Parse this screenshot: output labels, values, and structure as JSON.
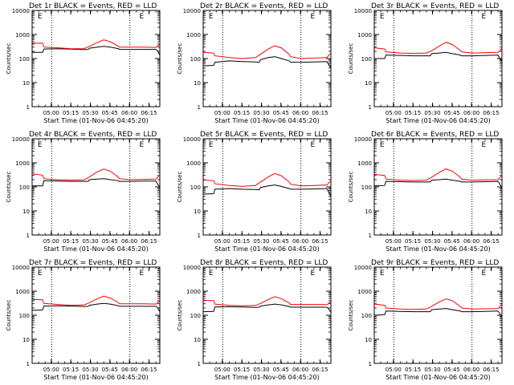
{
  "figure": {
    "background": "#ffffff"
  },
  "chart_data": [
    {
      "type": "line",
      "panel": "det-1r",
      "title": "Det 1r BLACK = Events, RED = LLD",
      "xlabel": "Start Time (01-Nov-06 04:45:20)",
      "ylabel": "Counts/sec",
      "xticks": [
        "05:00",
        "05:15",
        "05:30",
        "05:45",
        "06:00",
        "06:15"
      ],
      "yticks": [
        "1",
        "10",
        "100",
        "1000",
        "10000"
      ],
      "ylim": [
        1,
        10000
      ],
      "yscale": "log",
      "xlim_minutes": [
        0,
        98
      ],
      "markers": [
        "E",
        "E"
      ],
      "vlines_minutes": [
        15,
        75
      ],
      "series": [
        {
          "color": "#000000",
          "x": [
            0,
            8,
            9,
            20,
            30,
            40,
            43,
            44,
            50,
            55,
            60,
            66,
            67,
            75,
            85,
            95,
            96,
            98
          ],
          "y": [
            180,
            180,
            250,
            255,
            245,
            235,
            240,
            270,
            300,
            320,
            300,
            260,
            240,
            240,
            240,
            240,
            215,
            140
          ]
        },
        {
          "color": "#ff0000",
          "x": [
            0,
            8,
            9,
            20,
            30,
            40,
            44,
            50,
            55,
            60,
            66,
            67,
            75,
            85,
            95,
            96,
            98
          ],
          "y": [
            430,
            440,
            300,
            280,
            255,
            260,
            320,
            460,
            600,
            500,
            330,
            300,
            300,
            300,
            290,
            320,
            400
          ]
        }
      ]
    },
    {
      "type": "line",
      "panel": "det-2r",
      "title": "Det 2r BLACK = Events, RED = LLD",
      "xlabel": "Start Time (01-Nov-06 04:45:20)",
      "ylabel": "Counts/sec",
      "xticks": [
        "05:00",
        "05:15",
        "05:30",
        "05:45",
        "06:00",
        "06:15"
      ],
      "yticks": [
        "1",
        "10",
        "100",
        "1000",
        "10000"
      ],
      "ylim": [
        1,
        10000
      ],
      "yscale": "log",
      "xlim_minutes": [
        0,
        98
      ],
      "markers": [
        "E",
        "E"
      ],
      "vlines_minutes": [
        15,
        75
      ],
      "series": [
        {
          "color": "#000000",
          "x": [
            0,
            8,
            9,
            20,
            30,
            40,
            43,
            44,
            50,
            55,
            60,
            66,
            67,
            75,
            85,
            95,
            96,
            98
          ],
          "y": [
            50,
            52,
            70,
            80,
            75,
            72,
            70,
            90,
            110,
            120,
            100,
            80,
            70,
            70,
            72,
            75,
            60,
            40
          ]
        },
        {
          "color": "#ff0000",
          "x": [
            0,
            8,
            9,
            20,
            30,
            40,
            44,
            50,
            55,
            60,
            66,
            67,
            75,
            85,
            95,
            96,
            98
          ],
          "y": [
            180,
            170,
            130,
            110,
            100,
            110,
            150,
            250,
            340,
            280,
            150,
            120,
            100,
            105,
            110,
            130,
            170
          ]
        }
      ]
    },
    {
      "type": "line",
      "panel": "det-3r",
      "title": "Det 3r BLACK = Events, RED = LLD",
      "xlabel": "Start Time (01-Nov-06 04:45:20)",
      "ylabel": "Counts/sec",
      "xticks": [
        "05:00",
        "05:15",
        "05:30",
        "05:45",
        "06:00",
        "06:15"
      ],
      "yticks": [
        "1",
        "10",
        "100",
        "1000",
        "10000"
      ],
      "ylim": [
        1,
        10000
      ],
      "yscale": "log",
      "xlim_minutes": [
        0,
        98
      ],
      "markers": [
        "E",
        "E"
      ],
      "vlines_minutes": [
        15,
        75
      ],
      "series": [
        {
          "color": "#000000",
          "x": [
            0,
            8,
            9,
            20,
            30,
            40,
            43,
            44,
            50,
            55,
            60,
            66,
            67,
            75,
            85,
            95,
            96,
            98
          ],
          "y": [
            100,
            100,
            140,
            135,
            130,
            130,
            130,
            160,
            170,
            180,
            160,
            140,
            130,
            130,
            135,
            140,
            110,
            80
          ]
        },
        {
          "color": "#ff0000",
          "x": [
            0,
            8,
            9,
            20,
            30,
            40,
            44,
            50,
            55,
            60,
            66,
            67,
            75,
            85,
            95,
            96,
            98
          ],
          "y": [
            280,
            250,
            190,
            170,
            165,
            170,
            210,
            330,
            480,
            380,
            220,
            190,
            170,
            175,
            180,
            200,
            280
          ]
        }
      ]
    },
    {
      "type": "line",
      "panel": "det-4r",
      "title": "Det 4r BLACK = Events, RED = LLD",
      "xlabel": "Start Time (01-Nov-06 04:45:20)",
      "ylabel": "Counts/sec",
      "xticks": [
        "05:00",
        "05:15",
        "05:30",
        "05:45",
        "06:00",
        "06:15"
      ],
      "yticks": [
        "1",
        "10",
        "100",
        "1000",
        "10000"
      ],
      "ylim": [
        1,
        10000
      ],
      "yscale": "log",
      "xlim_minutes": [
        0,
        98
      ],
      "markers": [
        "E",
        "E"
      ],
      "vlines_minutes": [
        15,
        75
      ],
      "series": [
        {
          "color": "#000000",
          "x": [
            0,
            8,
            9,
            20,
            30,
            40,
            43,
            44,
            50,
            55,
            60,
            66,
            67,
            75,
            85,
            95,
            96,
            98
          ],
          "y": [
            110,
            110,
            180,
            175,
            170,
            170,
            170,
            200,
            210,
            220,
            200,
            180,
            170,
            170,
            175,
            175,
            140,
            95
          ]
        },
        {
          "color": "#ff0000",
          "x": [
            0,
            8,
            9,
            20,
            30,
            40,
            44,
            50,
            55,
            60,
            66,
            67,
            75,
            85,
            95,
            96,
            98
          ],
          "y": [
            350,
            310,
            220,
            195,
            190,
            195,
            260,
            420,
            550,
            450,
            260,
            220,
            200,
            205,
            210,
            240,
            320
          ]
        }
      ]
    },
    {
      "type": "line",
      "panel": "det-5r",
      "title": "Det 5r BLACK = Events, RED = LLD",
      "xlabel": "Start Time (01-Nov-06 04:45:20)",
      "ylabel": "Counts/sec",
      "xticks": [
        "05:00",
        "05:15",
        "05:30",
        "05:45",
        "06:00",
        "06:15"
      ],
      "yticks": [
        "1",
        "10",
        "100",
        "1000",
        "10000"
      ],
      "ylim": [
        1,
        10000
      ],
      "yscale": "log",
      "xlim_minutes": [
        0,
        98
      ],
      "markers": [
        "E",
        "E"
      ],
      "vlines_minutes": [
        15,
        75
      ],
      "series": [
        {
          "color": "#000000",
          "x": [
            0,
            8,
            9,
            20,
            30,
            40,
            43,
            44,
            50,
            55,
            60,
            66,
            67,
            75,
            85,
            95,
            96,
            98
          ],
          "y": [
            50,
            52,
            80,
            85,
            80,
            78,
            75,
            95,
            110,
            120,
            105,
            85,
            80,
            80,
            82,
            85,
            65,
            40
          ]
        },
        {
          "color": "#ff0000",
          "x": [
            0,
            8,
            9,
            20,
            30,
            40,
            44,
            50,
            55,
            60,
            66,
            67,
            75,
            85,
            95,
            96,
            98
          ],
          "y": [
            190,
            180,
            135,
            115,
            105,
            115,
            160,
            260,
            360,
            290,
            160,
            130,
            110,
            115,
            120,
            140,
            180
          ]
        }
      ]
    },
    {
      "type": "line",
      "panel": "det-6r",
      "title": "Det 6r BLACK = Events, RED = LLD",
      "xlabel": "Start Time (01-Nov-06 04:45:20)",
      "ylabel": "Counts/sec",
      "xticks": [
        "05:00",
        "05:15",
        "05:30",
        "05:45",
        "06:00",
        "06:15"
      ],
      "yticks": [
        "1",
        "10",
        "100",
        "1000",
        "10000"
      ],
      "ylim": [
        1,
        10000
      ],
      "yscale": "log",
      "xlim_minutes": [
        0,
        98
      ],
      "markers": [
        "E",
        "E"
      ],
      "vlines_minutes": [
        15,
        75
      ],
      "series": [
        {
          "color": "#000000",
          "x": [
            0,
            8,
            9,
            20,
            30,
            40,
            43,
            44,
            50,
            55,
            60,
            66,
            67,
            75,
            85,
            95,
            96,
            98
          ],
          "y": [
            110,
            115,
            170,
            165,
            160,
            160,
            160,
            190,
            200,
            210,
            190,
            170,
            160,
            160,
            165,
            170,
            140,
            90
          ]
        },
        {
          "color": "#ff0000",
          "x": [
            0,
            8,
            9,
            20,
            30,
            40,
            44,
            50,
            55,
            60,
            66,
            67,
            75,
            85,
            95,
            96,
            98
          ],
          "y": [
            330,
            300,
            210,
            190,
            185,
            190,
            250,
            400,
            560,
            450,
            250,
            210,
            190,
            195,
            200,
            230,
            300
          ]
        }
      ]
    },
    {
      "type": "line",
      "panel": "det-7r",
      "title": "Det 7r BLACK = Events, RED = LLD",
      "xlabel": "Start Time (01-Nov-06 04:45:20)",
      "ylabel": "Counts/sec",
      "xticks": [
        "05:00",
        "05:15",
        "05:30",
        "05:45",
        "06:00",
        "06:15"
      ],
      "yticks": [
        "1",
        "10",
        "100",
        "1000",
        "10000"
      ],
      "ylim": [
        1,
        10000
      ],
      "yscale": "log",
      "xlim_minutes": [
        0,
        98
      ],
      "markers": [
        "E",
        "E"
      ],
      "vlines_minutes": [
        15,
        75
      ],
      "series": [
        {
          "color": "#000000",
          "x": [
            0,
            8,
            9,
            20,
            30,
            40,
            43,
            44,
            50,
            55,
            60,
            66,
            67,
            75,
            85,
            95,
            96,
            98
          ],
          "y": [
            160,
            165,
            240,
            245,
            240,
            230,
            235,
            260,
            290,
            310,
            290,
            250,
            235,
            235,
            235,
            235,
            210,
            140
          ]
        },
        {
          "color": "#ff0000",
          "x": [
            0,
            8,
            9,
            20,
            30,
            40,
            44,
            50,
            55,
            60,
            66,
            67,
            75,
            85,
            95,
            96,
            98
          ],
          "y": [
            450,
            440,
            310,
            280,
            260,
            270,
            330,
            480,
            620,
            520,
            340,
            300,
            300,
            300,
            290,
            320,
            420
          ]
        }
      ]
    },
    {
      "type": "line",
      "panel": "det-8r",
      "title": "Det 8r BLACK = Events, RED = LLD",
      "xlabel": "Start Time (01-Nov-06 04:45:20)",
      "ylabel": "Counts/sec",
      "xticks": [
        "05:00",
        "05:15",
        "05:30",
        "05:45",
        "06:00",
        "06:15"
      ],
      "yticks": [
        "1",
        "10",
        "100",
        "1000",
        "10000"
      ],
      "ylim": [
        1,
        10000
      ],
      "yscale": "log",
      "xlim_minutes": [
        0,
        98
      ],
      "markers": [
        "E",
        "E"
      ],
      "vlines_minutes": [
        15,
        75
      ],
      "series": [
        {
          "color": "#000000",
          "x": [
            0,
            8,
            9,
            20,
            30,
            40,
            43,
            44,
            50,
            55,
            60,
            66,
            67,
            75,
            85,
            95,
            96,
            98
          ],
          "y": [
            140,
            145,
            220,
            225,
            220,
            210,
            215,
            240,
            270,
            290,
            270,
            230,
            215,
            215,
            215,
            215,
            190,
            130
          ]
        },
        {
          "color": "#ff0000",
          "x": [
            0,
            8,
            9,
            20,
            30,
            40,
            44,
            50,
            55,
            60,
            66,
            67,
            75,
            85,
            95,
            96,
            98
          ],
          "y": [
            420,
            400,
            290,
            260,
            245,
            255,
            310,
            450,
            590,
            490,
            320,
            280,
            280,
            280,
            275,
            300,
            390
          ]
        }
      ]
    },
    {
      "type": "line",
      "panel": "det-9r",
      "title": "Det 9r BLACK = Events, RED = LLD",
      "xlabel": "Start Time (01-Nov-06 04:45:20)",
      "ylabel": "Counts/sec",
      "xticks": [
        "05:00",
        "05:15",
        "05:30",
        "05:45",
        "06:00",
        "06:15"
      ],
      "yticks": [
        "1",
        "10",
        "100",
        "1000",
        "10000"
      ],
      "ylim": [
        1,
        10000
      ],
      "yscale": "log",
      "xlim_minutes": [
        0,
        98
      ],
      "markers": [
        "E",
        "E"
      ],
      "vlines_minutes": [
        15,
        75
      ],
      "series": [
        {
          "color": "#000000",
          "x": [
            0,
            8,
            9,
            20,
            30,
            40,
            43,
            44,
            50,
            55,
            60,
            66,
            67,
            75,
            85,
            95,
            96,
            98
          ],
          "y": [
            100,
            105,
            150,
            145,
            140,
            140,
            140,
            170,
            180,
            190,
            170,
            150,
            140,
            140,
            145,
            150,
            125,
            85
          ]
        },
        {
          "color": "#ff0000",
          "x": [
            0,
            8,
            9,
            20,
            30,
            40,
            44,
            50,
            55,
            60,
            66,
            67,
            75,
            85,
            95,
            96,
            98
          ],
          "y": [
            290,
            260,
            200,
            180,
            175,
            180,
            230,
            360,
            480,
            400,
            230,
            200,
            180,
            185,
            190,
            210,
            290
          ]
        }
      ]
    }
  ]
}
